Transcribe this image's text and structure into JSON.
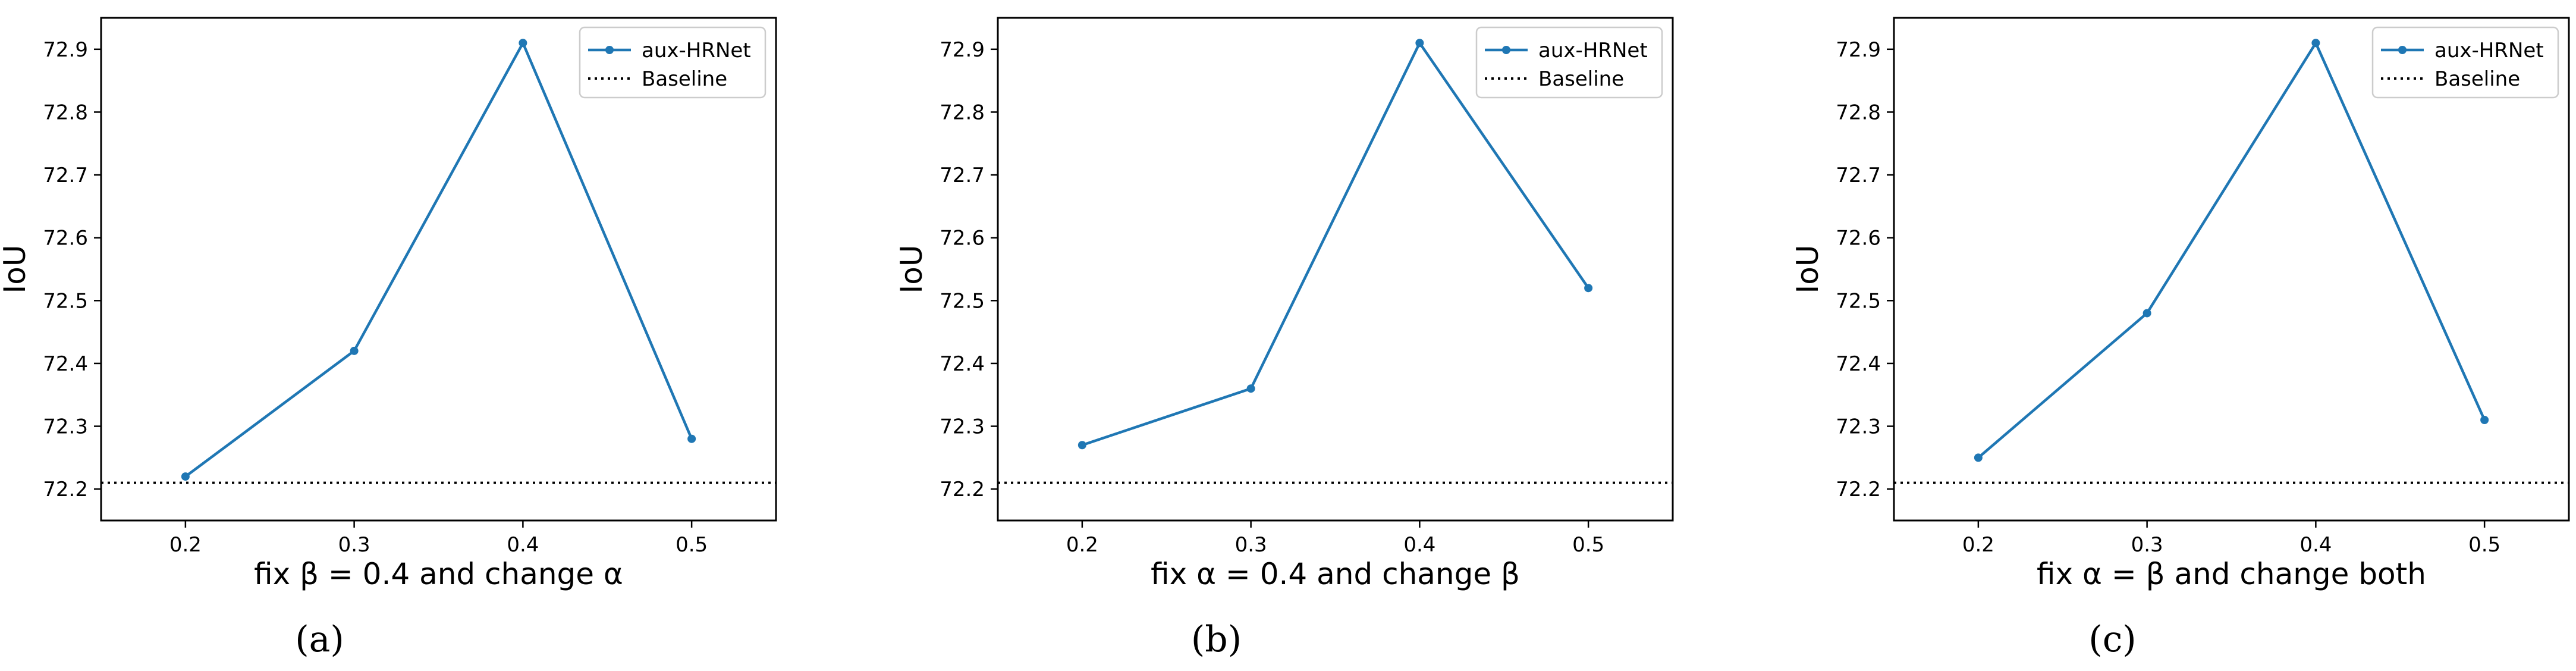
{
  "colors": {
    "series": "#1f77b4",
    "baseline": "#000000",
    "axes": "#000000",
    "text": "#000000"
  },
  "chart_data": [
    {
      "type": "line",
      "panel_label": "(a)",
      "xlabel": "fix β = 0.4 and change α",
      "ylabel": "IoU",
      "x": [
        0.2,
        0.3,
        0.4,
        0.5
      ],
      "xticks": [
        "0.2",
        "0.3",
        "0.4",
        "0.5"
      ],
      "xlim": [
        0.15,
        0.55
      ],
      "ylim": [
        72.15,
        72.95
      ],
      "yticks": [
        "72.2",
        "72.3",
        "72.4",
        "72.5",
        "72.6",
        "72.7",
        "72.8",
        "72.9"
      ],
      "series": [
        {
          "name": "aux-HRNet",
          "values": [
            72.22,
            72.42,
            72.91,
            72.28
          ]
        }
      ],
      "baseline": {
        "name": "Baseline",
        "value": 72.21
      },
      "legend": "top-right",
      "grid": false
    },
    {
      "type": "line",
      "panel_label": "(b)",
      "xlabel": "fix α = 0.4 and change β",
      "ylabel": "IoU",
      "x": [
        0.2,
        0.3,
        0.4,
        0.5
      ],
      "xticks": [
        "0.2",
        "0.3",
        "0.4",
        "0.5"
      ],
      "xlim": [
        0.15,
        0.55
      ],
      "ylim": [
        72.15,
        72.95
      ],
      "yticks": [
        "72.2",
        "72.3",
        "72.4",
        "72.5",
        "72.6",
        "72.7",
        "72.8",
        "72.9"
      ],
      "series": [
        {
          "name": "aux-HRNet",
          "values": [
            72.27,
            72.36,
            72.91,
            72.52
          ]
        }
      ],
      "baseline": {
        "name": "Baseline",
        "value": 72.21
      },
      "legend": "top-right",
      "grid": false
    },
    {
      "type": "line",
      "panel_label": "(c)",
      "xlabel": "fix α = β and change both",
      "ylabel": "IoU",
      "x": [
        0.2,
        0.3,
        0.4,
        0.5
      ],
      "xticks": [
        "0.2",
        "0.3",
        "0.4",
        "0.5"
      ],
      "xlim": [
        0.15,
        0.55
      ],
      "ylim": [
        72.15,
        72.95
      ],
      "yticks": [
        "72.2",
        "72.3",
        "72.4",
        "72.5",
        "72.6",
        "72.7",
        "72.8",
        "72.9"
      ],
      "series": [
        {
          "name": "aux-HRNet",
          "values": [
            72.25,
            72.48,
            72.91,
            72.31
          ]
        }
      ],
      "baseline": {
        "name": "Baseline",
        "value": 72.21
      },
      "legend": "top-right",
      "grid": false
    }
  ]
}
